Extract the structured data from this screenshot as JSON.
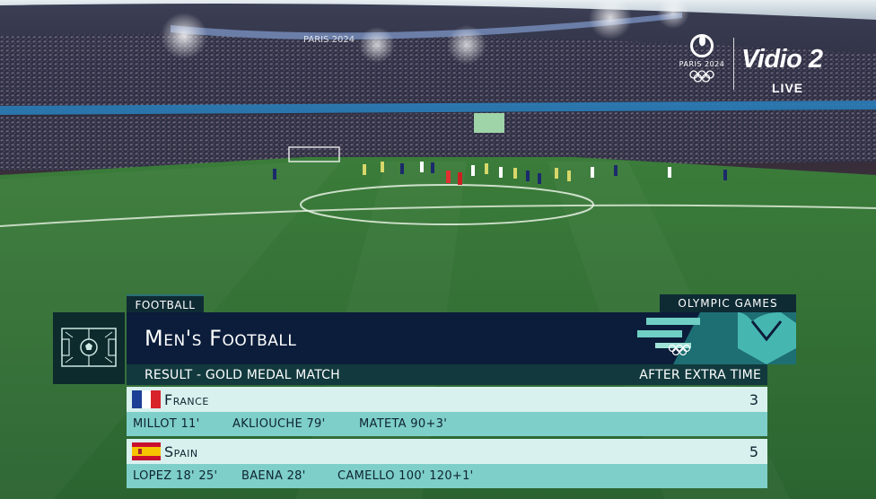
{
  "broadcast": {
    "olympic_logo_text": "PARIS 2024",
    "channel": "Vidio 2",
    "live_label": "LIVE",
    "banner_text": "PARIS 2024"
  },
  "graphic": {
    "sport_tab": "FOOTBALL",
    "games_tab": "OLYMPIC GAMES",
    "event_title": "Men's Football",
    "result_label": "RESULT - GOLD MEDAL MATCH",
    "status_label": "AFTER EXTRA TIME"
  },
  "teams": [
    {
      "name": "France",
      "score": "3",
      "scorers": [
        "MILLOT 11'",
        "AKLIOUCHE 79'",
        "MATETA 90+3'"
      ]
    },
    {
      "name": "Spain",
      "score": "5",
      "scorers": [
        "LOPEZ 18' 25'",
        "BAENA 28'",
        "CAMELLO 100' 120+1'"
      ]
    }
  ],
  "colors": {
    "pitch": "#2d6a32",
    "graphic_navy": "#0b1d3a",
    "graphic_teal": "#7ecfc9",
    "graphic_light": "#d8f1ee"
  }
}
